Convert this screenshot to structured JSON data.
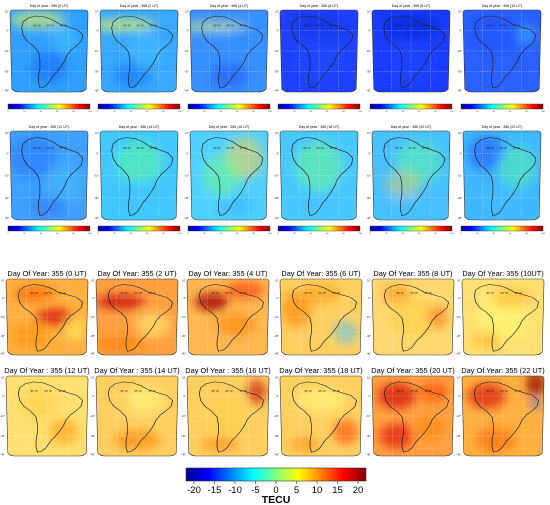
{
  "top_panels": [
    {
      "title": "Day of year : 356 (0 UT)"
    },
    {
      "title": "Day of year : 356 (2 UT)"
    },
    {
      "title": "Day of year : 356 (4 UT)"
    },
    {
      "title": "Day of year : 356 (6 UT)"
    },
    {
      "title": "Day of year : 356 (8 UT)"
    },
    {
      "title": "Day of year : 356 (10 UT)"
    },
    {
      "title": "Day of year : 356 (12 UT)"
    },
    {
      "title": "Day of year : 356 (14 UT)"
    },
    {
      "title": "Day of year : 356 (16 UT)"
    },
    {
      "title": "Day of year : 356 (18 UT)"
    },
    {
      "title": "Day of year : 356 (20 UT)"
    },
    {
      "title": "Day of year : 356 (22 UT)"
    }
  ],
  "top_colorbar_ticks": [
    "0",
    "20",
    "40",
    "60",
    "80",
    "100"
  ],
  "bottom_panels": [
    {
      "title": "Day Of Year: 355 (0 UT)"
    },
    {
      "title": "Day Of Year: 355 (2 UT)"
    },
    {
      "title": "Day Of Year: 355 (4 UT)"
    },
    {
      "title": "Day Of Year: 355 (6 UT)"
    },
    {
      "title": "Day Of Year: 355 (8 UT)"
    },
    {
      "title": "Day Of Year: 355 (10UT)"
    },
    {
      "title": "Day Of Year : 355  (12 UT)"
    },
    {
      "title": "Day Of Year : 355  (14 UT)"
    },
    {
      "title": "Day Of Year : 355  (16 UT)"
    },
    {
      "title": "Day Of Year: 355 (18 UT)"
    },
    {
      "title": "Day Of Year: 355 (20 UT)"
    },
    {
      "title": "Day Of Year: 355 (22 UT)"
    }
  ],
  "main_colorbar": {
    "ticks": [
      "-20",
      "-15",
      "-10",
      "-5",
      "0",
      "5",
      "10",
      "15",
      "20"
    ],
    "label": "TECU"
  },
  "grid_labels": {
    "lat": [
      "10°",
      "0°",
      "-10°",
      "-30°",
      "-40°"
    ],
    "lon": [
      "80° W",
      "60° W",
      "40° W"
    ]
  },
  "colors": {
    "low": "#00008f",
    "mid_low": "#00bfff",
    "mid": "#ffff66",
    "mid_high": "#ff8000",
    "high": "#8b0000"
  }
}
